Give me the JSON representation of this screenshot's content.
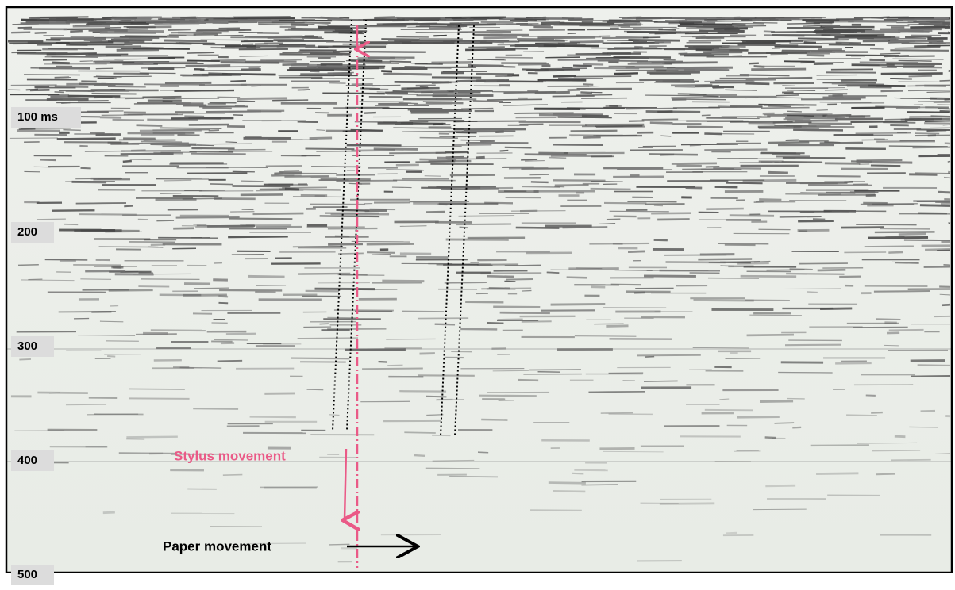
{
  "time_labels": [
    "100 ms",
    "200",
    "300",
    "400",
    "500"
  ],
  "annotations": {
    "stylus": "Stylus movement",
    "paper": "Paper movement"
  }
}
